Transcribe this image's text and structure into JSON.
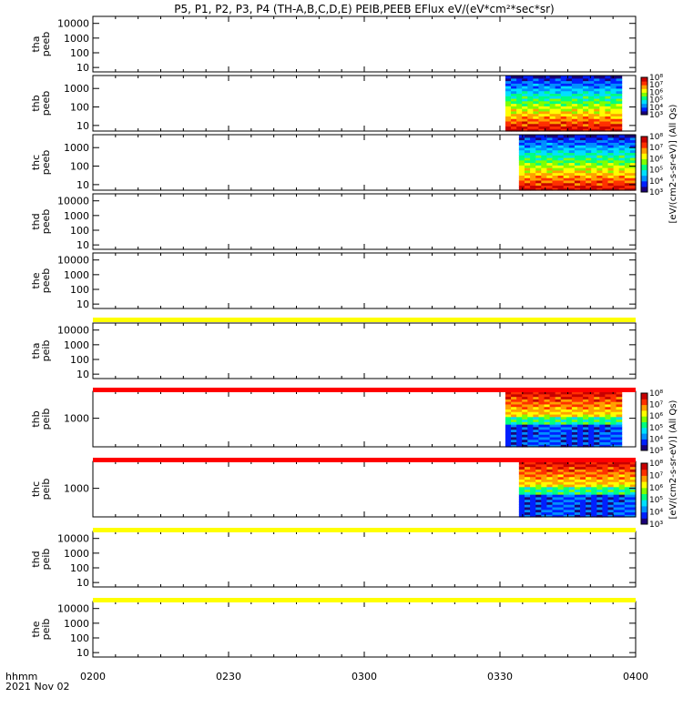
{
  "title": "P5, P1, P2, P3, P4 (TH-A,B,C,D,E) PEIB,PEEB EFlux eV/(eV*cm²*sec*sr)",
  "time_axis": {
    "label_line1": "hhmm",
    "label_line2": "2021 Nov 02",
    "ticks": [
      "0200",
      "0230",
      "0300",
      "0330",
      "0400"
    ],
    "tick_minutes": [
      120,
      150,
      180,
      210,
      240
    ],
    "range_minutes": [
      120,
      240
    ]
  },
  "colorbar": {
    "peeb_label": "[eV/(cm2-s-sr-eV)] (All Qs)",
    "peib_label": "[eV/(cm2-s-sr-eV)] (All Qs)",
    "log_range": [
      3,
      8
    ],
    "tick_labels": [
      "10⁸",
      "10⁷",
      "10⁶",
      "10⁵",
      "10⁴",
      "10³"
    ],
    "colors": [
      "#1a0078",
      "#0020ff",
      "#0090ff",
      "#00e0ff",
      "#00ff80",
      "#80ff00",
      "#ffff00",
      "#ffa000",
      "#ff3000",
      "#c80000"
    ]
  },
  "chart_data": [
    {
      "type": "heatmap",
      "panel": "tha_peeb",
      "ylabel": "tha\npeeb",
      "yscale": "log",
      "ylim": [
        5,
        30000
      ],
      "yticks": [
        "10000",
        "1000",
        "100",
        "10"
      ],
      "ytick_values": [
        10000,
        1000,
        100,
        10
      ],
      "data_start": null,
      "data_end": null
    },
    {
      "type": "heatmap",
      "panel": "thb_peeb",
      "ylabel": "thb\npeeb",
      "yscale": "log",
      "ylim": [
        5,
        5000
      ],
      "yticks": [
        "1000",
        "100",
        "10"
      ],
      "ytick_values": [
        1000,
        100,
        10
      ],
      "data_start": 211.2,
      "data_end": 236.9
    },
    {
      "type": "heatmap",
      "panel": "thc_peeb",
      "ylabel": "thc\npeeb",
      "yscale": "log",
      "ylim": [
        5,
        5000
      ],
      "yticks": [
        "1000",
        "100",
        "10"
      ],
      "ytick_values": [
        1000,
        100,
        10
      ],
      "data_start": 214.2,
      "data_end": 240
    },
    {
      "type": "heatmap",
      "panel": "thd_peeb",
      "ylabel": "thd\npeeb",
      "yscale": "log",
      "ylim": [
        5,
        30000
      ],
      "yticks": [
        "10000",
        "1000",
        "100",
        "10"
      ],
      "ytick_values": [
        10000,
        1000,
        100,
        10
      ],
      "data_start": null,
      "data_end": null
    },
    {
      "type": "heatmap",
      "panel": "the_peeb",
      "ylabel": "the\npeeb",
      "yscale": "log",
      "ylim": [
        5,
        30000
      ],
      "yticks": [
        "10000",
        "1000",
        "100",
        "10"
      ],
      "ytick_values": [
        10000,
        1000,
        100,
        10
      ],
      "data_start": null,
      "data_end": null
    },
    {
      "type": "heatmap",
      "panel": "tha_peib",
      "ylabel": "tha\npeib",
      "yscale": "log",
      "ylim": [
        5,
        30000
      ],
      "yticks": [
        "10000",
        "1000",
        "100",
        "10"
      ],
      "ytick_values": [
        10000,
        1000,
        100,
        10
      ],
      "data_start": null,
      "data_end": null
    },
    {
      "type": "heatmap",
      "panel": "thb_peib",
      "ylabel": "thb\npeib",
      "yscale": "log",
      "ylim": [
        150,
        6000
      ],
      "yticks": [
        "1000"
      ],
      "ytick_values": [
        1000
      ],
      "data_start": 211.2,
      "data_end": 236.9
    },
    {
      "type": "heatmap",
      "panel": "thc_peib",
      "ylabel": "thc\npeib",
      "yscale": "log",
      "ylim": [
        150,
        6000
      ],
      "yticks": [
        "1000"
      ],
      "ytick_values": [
        1000
      ],
      "data_start": 214.2,
      "data_end": 240
    },
    {
      "type": "heatmap",
      "panel": "thd_peib",
      "ylabel": "thd\npeib",
      "yscale": "log",
      "ylim": [
        5,
        30000
      ],
      "yticks": [
        "10000",
        "1000",
        "100",
        "10"
      ],
      "ytick_values": [
        10000,
        1000,
        100,
        10
      ],
      "data_start": null,
      "data_end": null
    },
    {
      "type": "heatmap",
      "panel": "the_peib",
      "ylabel": "the\npeib",
      "yscale": "log",
      "ylim": [
        5,
        30000
      ],
      "yticks": [
        "10000",
        "1000",
        "100",
        "10"
      ],
      "ytick_values": [
        10000,
        1000,
        100,
        10
      ],
      "data_start": null,
      "data_end": null
    }
  ],
  "flag_bars": [
    {
      "after_panel": "the_peeb",
      "color": "#ffff00"
    },
    {
      "after_panel": "tha_peib",
      "color": "#ff0000"
    },
    {
      "after_panel": "thb_peib",
      "color": "#ff0000"
    },
    {
      "after_panel": "thc_peib",
      "color": "#ffff00"
    },
    {
      "after_panel": "thd_peib",
      "color": "#ffff00"
    }
  ]
}
